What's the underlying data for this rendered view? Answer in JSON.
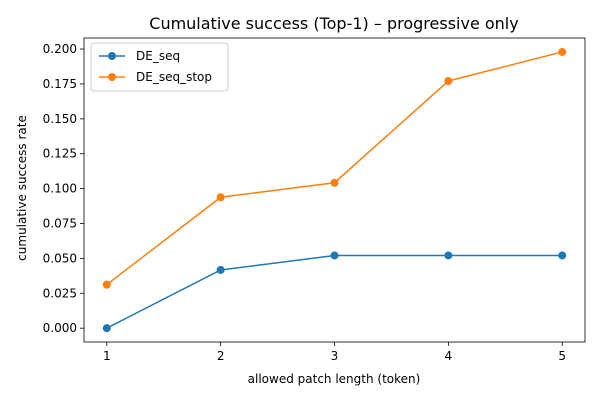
{
  "chart_data": {
    "type": "line",
    "title": "Cumulative success (Top-1) – progressive only",
    "xlabel": "allowed patch length (token)",
    "ylabel": "cumulative success rate",
    "x": [
      1,
      2,
      3,
      4,
      5
    ],
    "xticks": [
      "1",
      "2",
      "3",
      "4",
      "5"
    ],
    "yticks": [
      "0.000",
      "0.025",
      "0.050",
      "0.075",
      "0.100",
      "0.125",
      "0.150",
      "0.175",
      "0.200"
    ],
    "ylim": [
      -0.0099,
      0.2079
    ],
    "xlim": [
      0.8,
      5.2
    ],
    "grid": false,
    "legend_position": "top-left",
    "series": [
      {
        "name": "DE_seq",
        "color": "#1f77b4",
        "marker": "circle",
        "values": [
          0.0,
          0.0417,
          0.0521,
          0.0521,
          0.0521
        ]
      },
      {
        "name": "DE_seq_stop",
        "color": "#ff7f0e",
        "marker": "circle",
        "values": [
          0.0312,
          0.0938,
          0.1042,
          0.1771,
          0.1979
        ]
      }
    ]
  }
}
